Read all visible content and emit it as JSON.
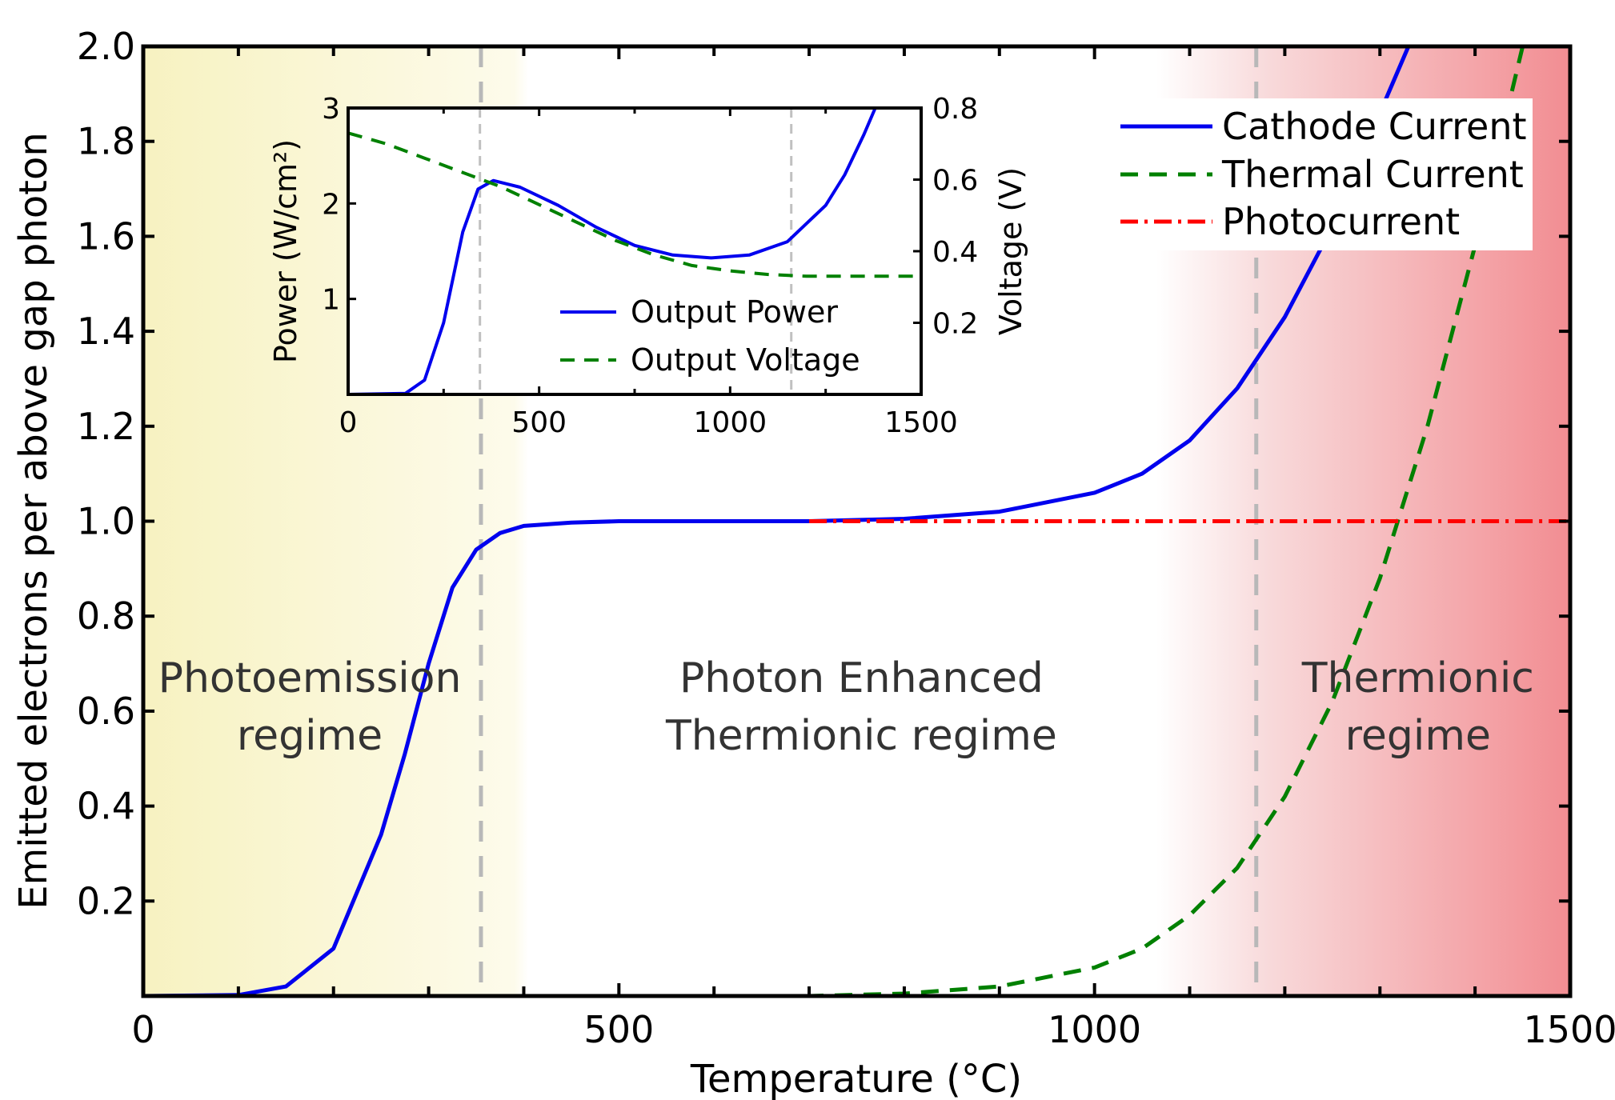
{
  "chart_data": [
    {
      "type": "line",
      "xlabel": "Temperature (°C)",
      "ylabel": "Emitted electrons per above gap photon",
      "xlim": [
        0,
        1500
      ],
      "ylim": [
        0,
        2.0
      ],
      "x_ticks": [
        "0",
        "500",
        "1000",
        "1500"
      ],
      "y_ticks": [
        "0.2",
        "0.4",
        "0.6",
        "0.8",
        "1.0",
        "1.2",
        "1.4",
        "1.6",
        "1.8",
        "2.0"
      ],
      "grid": false,
      "legend_position": "top-right",
      "regions": [
        {
          "label": [
            "Photoemission",
            "regime"
          ],
          "x_range": [
            0,
            355
          ],
          "label_x": 175,
          "label_y": 0.64,
          "color": "#f8f3c4"
        },
        {
          "label": [
            "Photon Enhanced",
            "Thermionic regime"
          ],
          "x_range": [
            355,
            1170
          ],
          "label_x": 755,
          "label_y": 0.64,
          "color": "#ffffff"
        },
        {
          "label": [
            "Thermionic",
            "regime"
          ],
          "x_range": [
            1170,
            1500
          ],
          "label_x": 1340,
          "label_y": 0.64,
          "color": "#f28f93"
        }
      ],
      "boundaries": [
        355,
        1170
      ],
      "series": [
        {
          "name": "Cathode Current",
          "color": "#0000ee",
          "style": "solid",
          "x": [
            0,
            100,
            150,
            200,
            250,
            275,
            300,
            325,
            350,
            375,
            400,
            450,
            500,
            600,
            700,
            800,
            900,
            1000,
            1050,
            1100,
            1150,
            1200,
            1250,
            1300,
            1330
          ],
          "y": [
            0,
            0.002,
            0.02,
            0.1,
            0.34,
            0.51,
            0.7,
            0.86,
            0.94,
            0.975,
            0.99,
            0.997,
            1.0,
            1.0,
            1.0,
            1.005,
            1.02,
            1.06,
            1.1,
            1.17,
            1.28,
            1.43,
            1.62,
            1.86,
            2.0
          ]
        },
        {
          "name": "Thermal Current",
          "color": "#008000",
          "style": "dashed",
          "x": [
            0,
            700,
            800,
            900,
            1000,
            1050,
            1100,
            1150,
            1200,
            1250,
            1300,
            1350,
            1400,
            1450
          ],
          "y": [
            0,
            0,
            0.005,
            0.02,
            0.06,
            0.1,
            0.17,
            0.27,
            0.42,
            0.62,
            0.88,
            1.2,
            1.58,
            2.0
          ]
        },
        {
          "name": "Photocurrent",
          "color": "#ff0000",
          "style": "dashdot",
          "x": [
            700,
            1500
          ],
          "y": [
            1.0,
            1.0
          ]
        }
      ]
    },
    {
      "type": "line",
      "inset": true,
      "xlabel": "",
      "ylabel_left": "Power (W/cm²)",
      "ylabel_right": "Voltage (V)",
      "xlim": [
        0,
        1500
      ],
      "ylim_left": [
        0,
        3
      ],
      "ylim_right": [
        0,
        0.8
      ],
      "x_ticks": [
        "0",
        "500",
        "1000",
        "1500"
      ],
      "y_ticks_left": [
        "1",
        "2",
        "3"
      ],
      "y_ticks_right": [
        "0.2",
        "0.4",
        "0.6",
        "0.8"
      ],
      "boundaries": [
        345,
        1160
      ],
      "legend_position": "bottom-center",
      "series": [
        {
          "name": "Output Power",
          "color": "#0000ee",
          "style": "solid",
          "axis": "left",
          "x": [
            0,
            150,
            200,
            250,
            300,
            340,
            380,
            450,
            550,
            650,
            750,
            850,
            950,
            1050,
            1150,
            1250,
            1300,
            1350,
            1380
          ],
          "y": [
            0,
            0.01,
            0.15,
            0.75,
            1.7,
            2.15,
            2.24,
            2.17,
            1.98,
            1.75,
            1.56,
            1.46,
            1.43,
            1.46,
            1.6,
            1.98,
            2.3,
            2.72,
            3.0
          ]
        },
        {
          "name": "Output Voltage",
          "color": "#008000",
          "style": "dashed",
          "axis": "right",
          "x": [
            0,
            100,
            200,
            300,
            400,
            500,
            600,
            700,
            800,
            900,
            1000,
            1100,
            1200,
            1300,
            1400,
            1500
          ],
          "y": [
            0.73,
            0.7,
            0.66,
            0.62,
            0.58,
            0.53,
            0.48,
            0.43,
            0.39,
            0.36,
            0.345,
            0.335,
            0.33,
            0.33,
            0.33,
            0.33
          ]
        }
      ]
    }
  ]
}
